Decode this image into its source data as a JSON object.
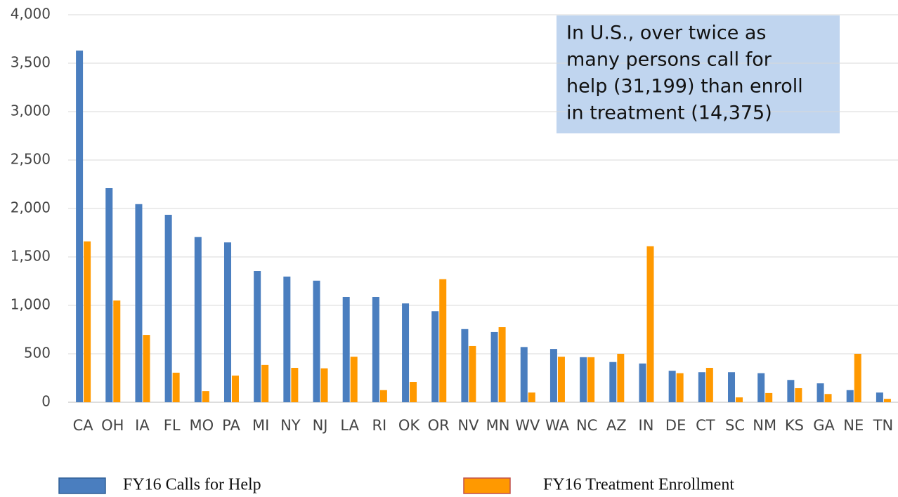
{
  "chart_data": {
    "type": "bar",
    "categories": [
      "CA",
      "OH",
      "IA",
      "FL",
      "MO",
      "PA",
      "MI",
      "NY",
      "NJ",
      "LA",
      "RI",
      "OK",
      "OR",
      "NV",
      "MN",
      "WV",
      "WA",
      "NC",
      "AZ",
      "IN",
      "DE",
      "CT",
      "SC",
      "NM",
      "KS",
      "GA",
      "NE",
      "TN"
    ],
    "series": [
      {
        "name": "FY16 Calls for Help",
        "color": "#4a7ebf",
        "values": [
          3630,
          2210,
          2045,
          1935,
          1705,
          1650,
          1355,
          1297,
          1255,
          1087,
          1087,
          1020,
          940,
          755,
          725,
          570,
          550,
          465,
          415,
          400,
          325,
          310,
          310,
          300,
          230,
          195,
          125,
          100
        ]
      },
      {
        "name": "FY16 Treatment Enrollment",
        "color": "#ff9900",
        "values": [
          1660,
          1050,
          695,
          305,
          115,
          275,
          385,
          355,
          350,
          470,
          125,
          210,
          1270,
          580,
          775,
          100,
          470,
          465,
          500,
          1610,
          300,
          355,
          50,
          95,
          145,
          85,
          500,
          35
        ]
      }
    ],
    "ylim": [
      0,
      4000
    ],
    "yticks": [
      0,
      500,
      {
        "value": 1000,
        "label": "1,000"
      },
      {
        "value": 1500,
        "label": "1,500"
      },
      {
        "value": 2000,
        "label": "2,000"
      },
      {
        "value": 2500,
        "label": "2,500"
      },
      {
        "value": 3000,
        "label": "3,000"
      },
      {
        "value": 3500,
        "label": "3,500"
      },
      {
        "value": 4000,
        "label": "4,000"
      }
    ],
    "grid": true,
    "annotation": [
      "In U.S., over twice as",
      "many persons call for",
      "help (31,199) than enroll",
      "in treatment (14,375)"
    ],
    "legend": "bottom"
  }
}
